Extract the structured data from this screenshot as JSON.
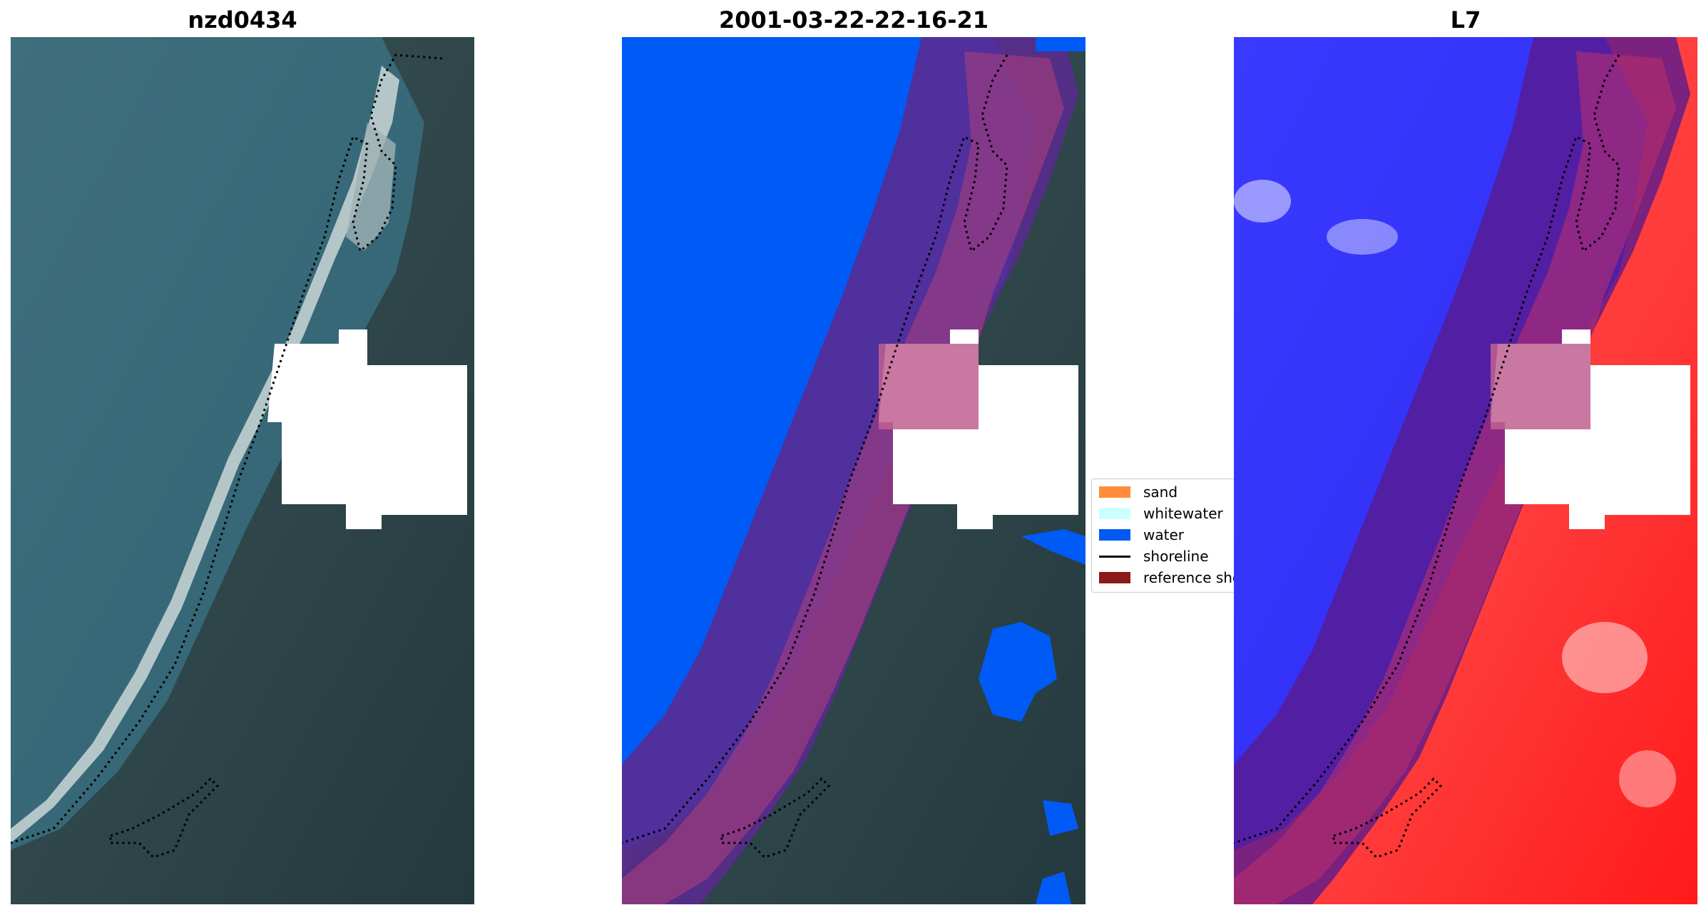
{
  "panels": [
    {
      "title": "nzd0434"
    },
    {
      "title": "2001-03-22-22-16-21"
    },
    {
      "title": "L7"
    }
  ],
  "legend": {
    "items": [
      {
        "label": "sand",
        "color": "#ff8c3a",
        "kind": "patch"
      },
      {
        "label": "whitewater",
        "color": "#ccffff",
        "kind": "patch"
      },
      {
        "label": "water",
        "color": "#005af5",
        "kind": "patch"
      },
      {
        "label": "shoreline",
        "color": "#000000",
        "kind": "line"
      },
      {
        "label": "reference shoreline buffer",
        "color": "#8b1a1a",
        "kind": "patch"
      }
    ]
  },
  "colors": {
    "ocean": "#3b6b78",
    "land": "#2e4a4f",
    "beach": "#b9c7c9",
    "cloud": "#ffffff",
    "buffer": "#6a1e88",
    "water_class": "#005af5",
    "index_low": "#2727ff",
    "index_high": "#ff3030"
  }
}
